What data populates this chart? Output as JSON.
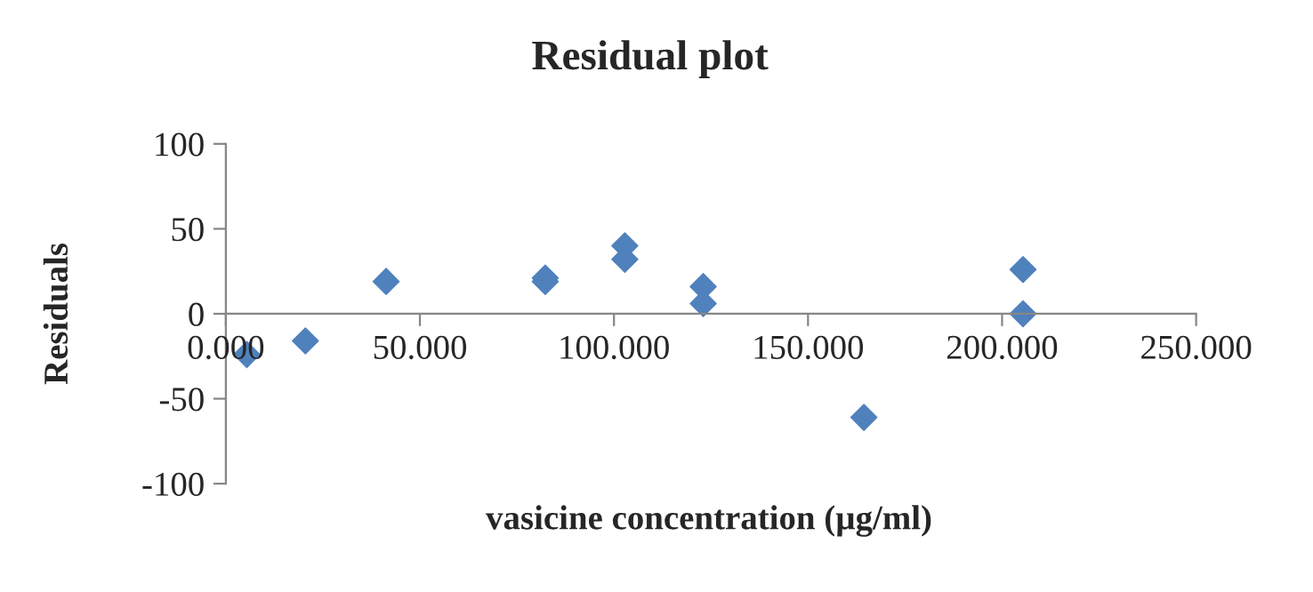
{
  "chart_data": {
    "type": "scatter",
    "title": "Residual plot",
    "xlabel": "vasicine concentration (µg/ml)",
    "ylabel": "Residuals",
    "x": [
      5.4,
      20.5,
      41.3,
      82.3,
      82.3,
      102.8,
      102.8,
      123,
      123,
      164.4,
      205.4,
      205.4
    ],
    "series": [
      {
        "color": "#4f81bd",
        "values": [
          -24,
          -16,
          19,
          21,
          19,
          40,
          32,
          16,
          6,
          -61,
          26,
          0
        ]
      }
    ],
    "xlim": [
      0,
      250
    ],
    "xticks": [
      {
        "value": 0,
        "label": "0.000"
      },
      {
        "value": 50,
        "label": "50.000"
      },
      {
        "value": 100,
        "label": "100.000"
      },
      {
        "value": 150,
        "label": "150.000"
      },
      {
        "value": 200,
        "label": "200.000"
      },
      {
        "value": 250,
        "label": "250.000"
      }
    ],
    "ylim": [
      -100,
      100
    ],
    "yticks": [
      -100,
      -50,
      0,
      50,
      100
    ],
    "marker": "diamond",
    "grid": false,
    "legend": false
  }
}
